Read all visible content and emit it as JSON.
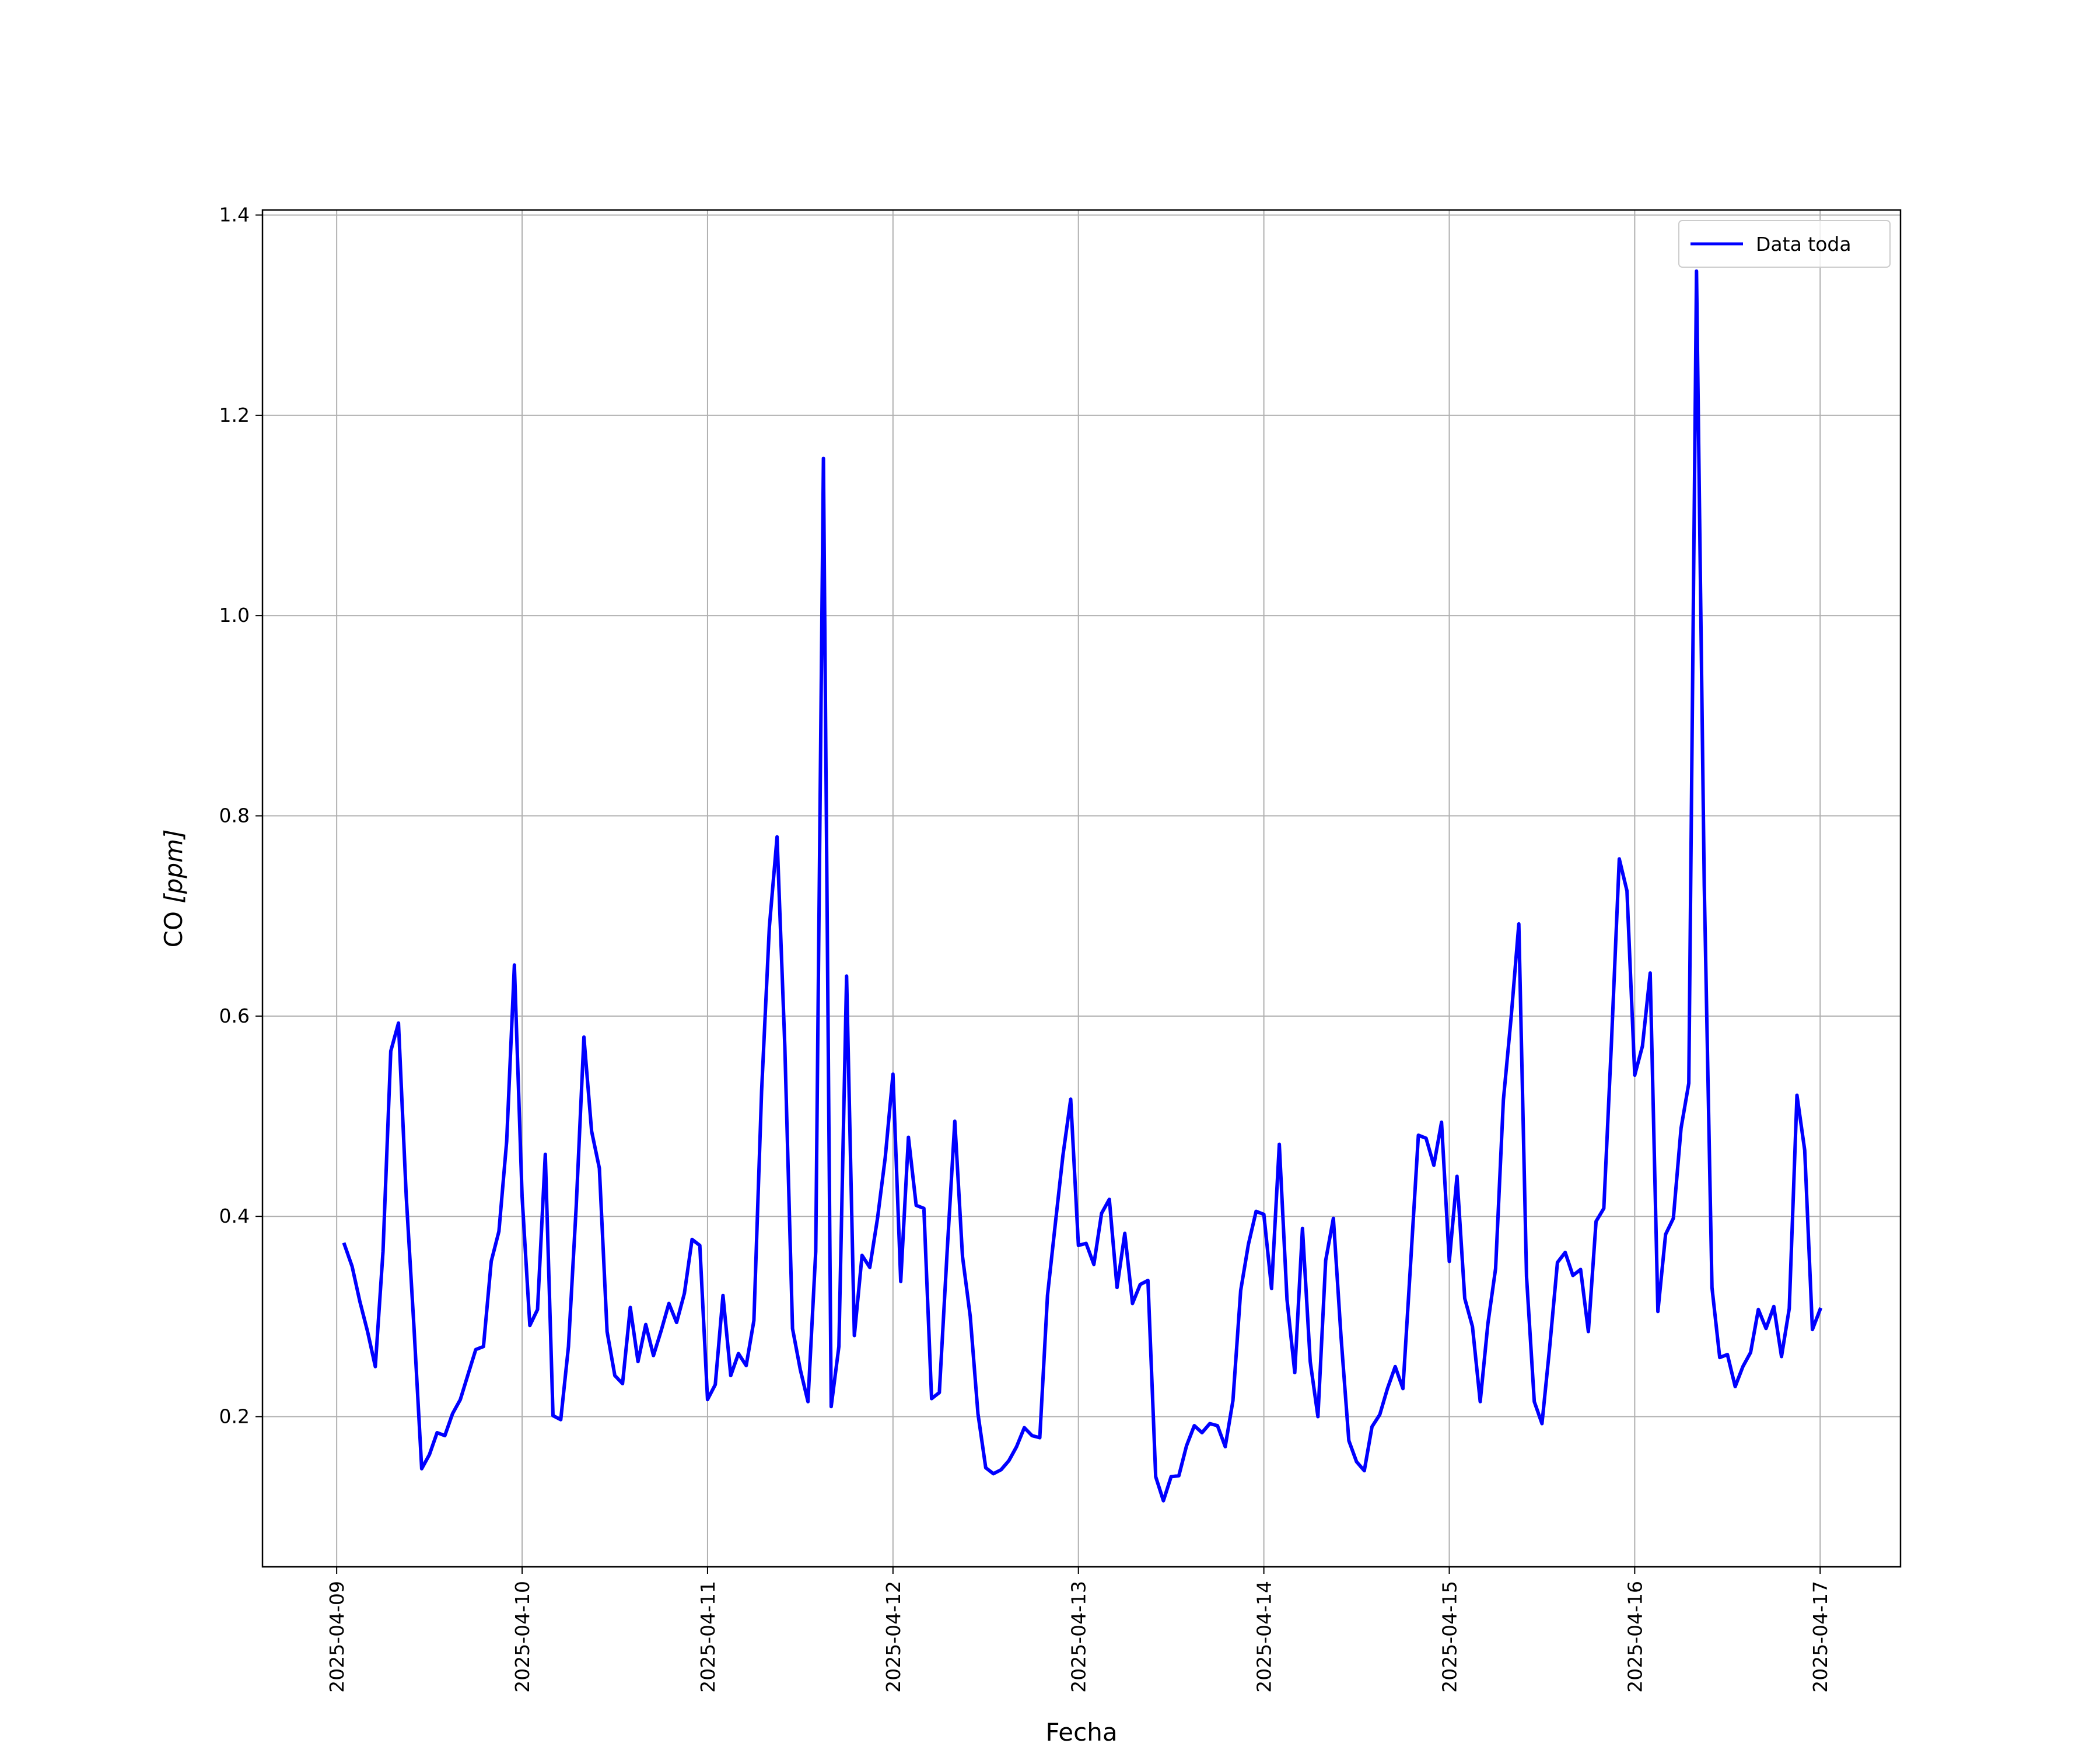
{
  "chart_data": {
    "type": "line",
    "title": "",
    "xlabel": "Fecha",
    "ylabel_prefix": "CO ",
    "ylabel_unit": "[ppm]",
    "x_start_date": "2025-04-09",
    "x_tick_labels": [
      "2025-04-09",
      "2025-04-10",
      "2025-04-11",
      "2025-04-12",
      "2025-04-13",
      "2025-04-14",
      "2025-04-15",
      "2025-04-16",
      "2025-04-17"
    ],
    "y_ticks": [
      0.2,
      0.4,
      0.6,
      0.8,
      1.0,
      1.2,
      1.4
    ],
    "y_tick_labels": [
      "0.2",
      "0.4",
      "0.6",
      "0.8",
      "1.0",
      "1.2",
      "1.4"
    ],
    "xlim": [
      "2025-04-08 14:24",
      "2025-04-17 10:24"
    ],
    "ylim": [
      0.05,
      1.405
    ],
    "grid": true,
    "legend_position": "top-right",
    "series": [
      {
        "name": "Data toda",
        "color": "#0000ff",
        "x": [
          "2025-04-09 01:00",
          "2025-04-09 02:00",
          "2025-04-09 03:00",
          "2025-04-09 04:00",
          "2025-04-09 05:00",
          "2025-04-09 06:00",
          "2025-04-09 07:00",
          "2025-04-09 08:00",
          "2025-04-09 09:00",
          "2025-04-09 10:00",
          "2025-04-09 11:00",
          "2025-04-09 12:00",
          "2025-04-09 13:00",
          "2025-04-09 14:00",
          "2025-04-09 15:00",
          "2025-04-09 16:00",
          "2025-04-09 17:00",
          "2025-04-09 18:00",
          "2025-04-09 19:00",
          "2025-04-09 20:00",
          "2025-04-09 21:00",
          "2025-04-09 22:00",
          "2025-04-09 23:00",
          "2025-04-10 00:00",
          "2025-04-10 01:00",
          "2025-04-10 02:00",
          "2025-04-10 03:00",
          "2025-04-10 04:00",
          "2025-04-10 05:00",
          "2025-04-10 06:00",
          "2025-04-10 07:00",
          "2025-04-10 08:00",
          "2025-04-10 09:00",
          "2025-04-10 10:00",
          "2025-04-10 11:00",
          "2025-04-10 12:00",
          "2025-04-10 13:00",
          "2025-04-10 14:00",
          "2025-04-10 15:00",
          "2025-04-10 16:00",
          "2025-04-10 17:00",
          "2025-04-10 18:00",
          "2025-04-10 19:00",
          "2025-04-10 20:00",
          "2025-04-10 21:00",
          "2025-04-10 22:00",
          "2025-04-10 23:00",
          "2025-04-11 00:00",
          "2025-04-11 01:00",
          "2025-04-11 02:00",
          "2025-04-11 03:00",
          "2025-04-11 04:00",
          "2025-04-11 05:00",
          "2025-04-11 06:00",
          "2025-04-11 07:00",
          "2025-04-11 08:00",
          "2025-04-11 09:00",
          "2025-04-11 10:00",
          "2025-04-11 11:00",
          "2025-04-11 12:00",
          "2025-04-11 13:00",
          "2025-04-11 14:00",
          "2025-04-11 15:00",
          "2025-04-11 16:00",
          "2025-04-11 17:00",
          "2025-04-11 18:00",
          "2025-04-11 19:00",
          "2025-04-11 20:00",
          "2025-04-11 21:00",
          "2025-04-11 22:00",
          "2025-04-11 23:00",
          "2025-04-12 00:00",
          "2025-04-12 01:00",
          "2025-04-12 02:00",
          "2025-04-12 03:00",
          "2025-04-12 04:00",
          "2025-04-12 05:00",
          "2025-04-12 06:00",
          "2025-04-12 07:00",
          "2025-04-12 08:00",
          "2025-04-12 09:00",
          "2025-04-12 10:00",
          "2025-04-12 11:00",
          "2025-04-12 12:00",
          "2025-04-12 13:00",
          "2025-04-12 14:00",
          "2025-04-12 15:00",
          "2025-04-12 16:00",
          "2025-04-12 17:00",
          "2025-04-12 18:00",
          "2025-04-12 19:00",
          "2025-04-12 20:00",
          "2025-04-12 21:00",
          "2025-04-12 22:00",
          "2025-04-12 23:00",
          "2025-04-13 00:00",
          "2025-04-13 01:00",
          "2025-04-13 02:00",
          "2025-04-13 03:00",
          "2025-04-13 04:00",
          "2025-04-13 05:00",
          "2025-04-13 06:00",
          "2025-04-13 07:00",
          "2025-04-13 08:00",
          "2025-04-13 09:00",
          "2025-04-13 10:00",
          "2025-04-13 11:00",
          "2025-04-13 12:00",
          "2025-04-13 13:00",
          "2025-04-13 14:00",
          "2025-04-13 15:00",
          "2025-04-13 16:00",
          "2025-04-13 17:00",
          "2025-04-13 18:00",
          "2025-04-13 19:00",
          "2025-04-13 20:00",
          "2025-04-13 21:00",
          "2025-04-13 22:00",
          "2025-04-13 23:00",
          "2025-04-14 00:00",
          "2025-04-14 01:00",
          "2025-04-14 02:00",
          "2025-04-14 03:00",
          "2025-04-14 04:00",
          "2025-04-14 05:00",
          "2025-04-14 06:00",
          "2025-04-14 07:00",
          "2025-04-14 08:00",
          "2025-04-14 09:00",
          "2025-04-14 10:00",
          "2025-04-14 11:00",
          "2025-04-14 12:00",
          "2025-04-14 13:00",
          "2025-04-14 14:00",
          "2025-04-14 15:00",
          "2025-04-14 16:00",
          "2025-04-14 17:00",
          "2025-04-14 18:00",
          "2025-04-14 19:00",
          "2025-04-14 20:00",
          "2025-04-14 21:00",
          "2025-04-14 22:00",
          "2025-04-14 23:00",
          "2025-04-15 00:00",
          "2025-04-15 01:00",
          "2025-04-15 02:00",
          "2025-04-15 03:00",
          "2025-04-15 04:00",
          "2025-04-15 05:00",
          "2025-04-15 06:00",
          "2025-04-15 07:00",
          "2025-04-15 08:00",
          "2025-04-15 09:00",
          "2025-04-15 10:00",
          "2025-04-15 11:00",
          "2025-04-15 12:00",
          "2025-04-15 13:00",
          "2025-04-15 14:00",
          "2025-04-15 15:00",
          "2025-04-15 16:00",
          "2025-04-15 17:00",
          "2025-04-15 18:00",
          "2025-04-15 19:00",
          "2025-04-15 20:00",
          "2025-04-15 21:00",
          "2025-04-15 22:00",
          "2025-04-15 23:00",
          "2025-04-16 00:00",
          "2025-04-16 01:00",
          "2025-04-16 02:00",
          "2025-04-16 03:00",
          "2025-04-16 04:00",
          "2025-04-16 05:00",
          "2025-04-16 06:00",
          "2025-04-16 07:00",
          "2025-04-16 08:00",
          "2025-04-16 09:00",
          "2025-04-16 10:00",
          "2025-04-16 11:00",
          "2025-04-16 12:00",
          "2025-04-16 13:00",
          "2025-04-16 14:00",
          "2025-04-16 15:00",
          "2025-04-16 16:00",
          "2025-04-16 17:00",
          "2025-04-16 18:00",
          "2025-04-16 19:00",
          "2025-04-16 20:00",
          "2025-04-16 21:00",
          "2025-04-16 22:00",
          "2025-04-16 23:00",
          "2025-04-17 00:00"
        ],
        "y": [
          0.372,
          0.35,
          0.315,
          0.285,
          0.25,
          0.365,
          0.565,
          0.593,
          0.42,
          0.29,
          0.148,
          0.162,
          0.184,
          0.181,
          0.203,
          0.217,
          0.242,
          0.267,
          0.27,
          0.355,
          0.385,
          0.475,
          0.651,
          0.42,
          0.291,
          0.307,
          0.462,
          0.201,
          0.197,
          0.27,
          0.41,
          0.579,
          0.485,
          0.448,
          0.285,
          0.241,
          0.233,
          0.309,
          0.255,
          0.292,
          0.261,
          0.286,
          0.313,
          0.294,
          0.323,
          0.377,
          0.371,
          0.217,
          0.232,
          0.321,
          0.241,
          0.263,
          0.251,
          0.296,
          0.525,
          0.689,
          0.779,
          0.57,
          0.288,
          0.247,
          0.215,
          0.365,
          1.157,
          0.21,
          0.27,
          0.64,
          0.281,
          0.361,
          0.349,
          0.398,
          0.459,
          0.542,
          0.335,
          0.479,
          0.411,
          0.408,
          0.218,
          0.224,
          0.363,
          0.495,
          0.36,
          0.3,
          0.203,
          0.149,
          0.143,
          0.147,
          0.156,
          0.17,
          0.189,
          0.181,
          0.179,
          0.321,
          0.392,
          0.461,
          0.517,
          0.371,
          0.373,
          0.352,
          0.403,
          0.417,
          0.329,
          0.383,
          0.313,
          0.332,
          0.336,
          0.14,
          0.116,
          0.14,
          0.141,
          0.171,
          0.191,
          0.184,
          0.193,
          0.191,
          0.17,
          0.216,
          0.326,
          0.372,
          0.405,
          0.402,
          0.328,
          0.472,
          0.317,
          0.244,
          0.388,
          0.255,
          0.2,
          0.356,
          0.398,
          0.279,
          0.176,
          0.155,
          0.146,
          0.19,
          0.202,
          0.228,
          0.25,
          0.228,
          0.353,
          0.481,
          0.478,
          0.451,
          0.494,
          0.355,
          0.44,
          0.318,
          0.29,
          0.215,
          0.293,
          0.348,
          0.516,
          0.598,
          0.692,
          0.34,
          0.215,
          0.193,
          0.27,
          0.354,
          0.364,
          0.341,
          0.347,
          0.285,
          0.395,
          0.408,
          0.575,
          0.757,
          0.725,
          0.541,
          0.57,
          0.643,
          0.305,
          0.382,
          0.398,
          0.488,
          0.533,
          1.344,
          0.73,
          0.329,
          0.259,
          0.262,
          0.23,
          0.25,
          0.264,
          0.307,
          0.288,
          0.31,
          0.26,
          0.308,
          0.521,
          0.466,
          0.287,
          0.307
        ]
      }
    ]
  }
}
